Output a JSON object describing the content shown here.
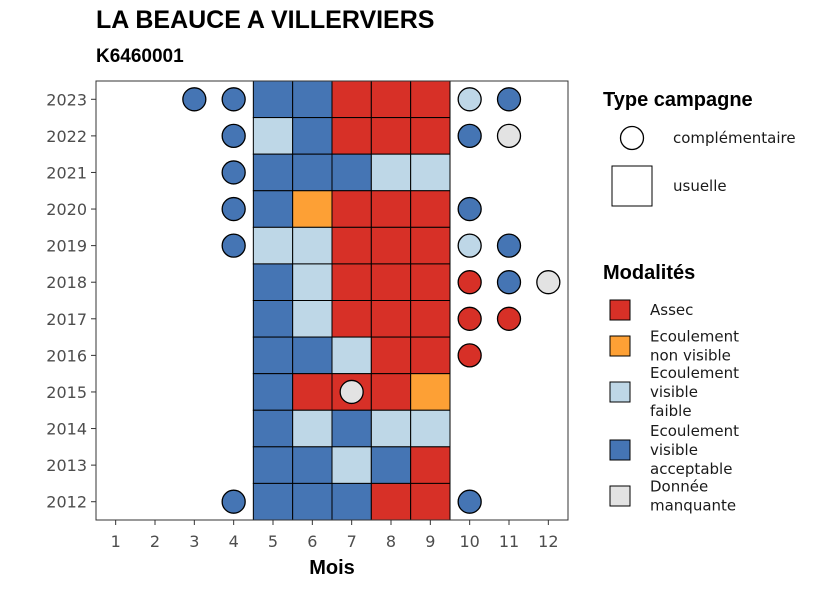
{
  "chart_data": {
    "type": "heatmap",
    "title": "LA BEAUCE A VILLERVIERS",
    "subtitle": "K6460001",
    "xlabel": "Mois",
    "ylabel": "",
    "x_ticks": [
      "1",
      "2",
      "3",
      "4",
      "5",
      "6",
      "7",
      "8",
      "9",
      "10",
      "11",
      "12"
    ],
    "y_ticks": [
      "2023",
      "2022",
      "2021",
      "2020",
      "2019",
      "2018",
      "2017",
      "2016",
      "2015",
      "2014",
      "2013",
      "2012"
    ],
    "grid": false,
    "legend_position": "right",
    "colors": {
      "Assec": "#d73027",
      "Ecoulement non visible": "#fda035",
      "Ecoulement visible faible": "#bed7e7",
      "Ecoulement visible acceptable": "#4575b4",
      "Donnée manquante": "#e3e3e3"
    },
    "legend_campagne": {
      "title": "Type campagne",
      "items": [
        {
          "shape": "circle",
          "label": "complémentaire"
        },
        {
          "shape": "square",
          "label": "usuelle"
        }
      ]
    },
    "legend_modalites": {
      "title": "Modalités",
      "items": [
        {
          "key": "Assec",
          "lines": [
            "Assec"
          ]
        },
        {
          "key": "Ecoulement non visible",
          "lines": [
            "Ecoulement",
            "non visible"
          ]
        },
        {
          "key": "Ecoulement visible faible",
          "lines": [
            "Ecoulement",
            "visible",
            "faible"
          ]
        },
        {
          "key": "Ecoulement visible acceptable",
          "lines": [
            "Ecoulement",
            "visible",
            "acceptable"
          ]
        },
        {
          "key": "Donnée manquante",
          "lines": [
            "Donnée",
            "manquante"
          ]
        }
      ]
    },
    "observations": [
      {
        "year": 2023,
        "month": 3,
        "campagne": "complémentaire",
        "modalite": "Ecoulement visible acceptable"
      },
      {
        "year": 2023,
        "month": 4,
        "campagne": "complémentaire",
        "modalite": "Ecoulement visible acceptable"
      },
      {
        "year": 2023,
        "month": 5,
        "campagne": "usuelle",
        "modalite": "Ecoulement visible acceptable"
      },
      {
        "year": 2023,
        "month": 6,
        "campagne": "usuelle",
        "modalite": "Ecoulement visible acceptable"
      },
      {
        "year": 2023,
        "month": 7,
        "campagne": "usuelle",
        "modalite": "Assec"
      },
      {
        "year": 2023,
        "month": 8,
        "campagne": "usuelle",
        "modalite": "Assec"
      },
      {
        "year": 2023,
        "month": 9,
        "campagne": "usuelle",
        "modalite": "Assec"
      },
      {
        "year": 2023,
        "month": 10,
        "campagne": "complémentaire",
        "modalite": "Ecoulement visible faible"
      },
      {
        "year": 2023,
        "month": 11,
        "campagne": "complémentaire",
        "modalite": "Ecoulement visible acceptable"
      },
      {
        "year": 2022,
        "month": 4,
        "campagne": "complémentaire",
        "modalite": "Ecoulement visible acceptable"
      },
      {
        "year": 2022,
        "month": 5,
        "campagne": "usuelle",
        "modalite": "Ecoulement visible faible"
      },
      {
        "year": 2022,
        "month": 6,
        "campagne": "usuelle",
        "modalite": "Ecoulement visible acceptable"
      },
      {
        "year": 2022,
        "month": 7,
        "campagne": "usuelle",
        "modalite": "Assec"
      },
      {
        "year": 2022,
        "month": 8,
        "campagne": "usuelle",
        "modalite": "Assec"
      },
      {
        "year": 2022,
        "month": 9,
        "campagne": "usuelle",
        "modalite": "Assec"
      },
      {
        "year": 2022,
        "month": 10,
        "campagne": "complémentaire",
        "modalite": "Ecoulement visible acceptable"
      },
      {
        "year": 2022,
        "month": 11,
        "campagne": "complémentaire",
        "modalite": "Donnée manquante"
      },
      {
        "year": 2021,
        "month": 4,
        "campagne": "complémentaire",
        "modalite": "Ecoulement visible acceptable"
      },
      {
        "year": 2021,
        "month": 5,
        "campagne": "usuelle",
        "modalite": "Ecoulement visible acceptable"
      },
      {
        "year": 2021,
        "month": 6,
        "campagne": "usuelle",
        "modalite": "Ecoulement visible acceptable"
      },
      {
        "year": 2021,
        "month": 7,
        "campagne": "usuelle",
        "modalite": "Ecoulement visible acceptable"
      },
      {
        "year": 2021,
        "month": 8,
        "campagne": "usuelle",
        "modalite": "Ecoulement visible faible"
      },
      {
        "year": 2021,
        "month": 9,
        "campagne": "usuelle",
        "modalite": "Ecoulement visible faible"
      },
      {
        "year": 2020,
        "month": 4,
        "campagne": "complémentaire",
        "modalite": "Ecoulement visible acceptable"
      },
      {
        "year": 2020,
        "month": 5,
        "campagne": "usuelle",
        "modalite": "Ecoulement visible acceptable"
      },
      {
        "year": 2020,
        "month": 6,
        "campagne": "usuelle",
        "modalite": "Ecoulement non visible"
      },
      {
        "year": 2020,
        "month": 7,
        "campagne": "usuelle",
        "modalite": "Assec"
      },
      {
        "year": 2020,
        "month": 8,
        "campagne": "usuelle",
        "modalite": "Assec"
      },
      {
        "year": 2020,
        "month": 9,
        "campagne": "usuelle",
        "modalite": "Assec"
      },
      {
        "year": 2020,
        "month": 10,
        "campagne": "complémentaire",
        "modalite": "Ecoulement visible acceptable"
      },
      {
        "year": 2019,
        "month": 4,
        "campagne": "complémentaire",
        "modalite": "Ecoulement visible acceptable"
      },
      {
        "year": 2019,
        "month": 5,
        "campagne": "usuelle",
        "modalite": "Ecoulement visible faible"
      },
      {
        "year": 2019,
        "month": 6,
        "campagne": "usuelle",
        "modalite": "Ecoulement visible faible"
      },
      {
        "year": 2019,
        "month": 7,
        "campagne": "usuelle",
        "modalite": "Assec"
      },
      {
        "year": 2019,
        "month": 8,
        "campagne": "usuelle",
        "modalite": "Assec"
      },
      {
        "year": 2019,
        "month": 9,
        "campagne": "usuelle",
        "modalite": "Assec"
      },
      {
        "year": 2019,
        "month": 10,
        "campagne": "complémentaire",
        "modalite": "Ecoulement visible faible"
      },
      {
        "year": 2019,
        "month": 11,
        "campagne": "complémentaire",
        "modalite": "Ecoulement visible acceptable"
      },
      {
        "year": 2018,
        "month": 5,
        "campagne": "usuelle",
        "modalite": "Ecoulement visible acceptable"
      },
      {
        "year": 2018,
        "month": 6,
        "campagne": "usuelle",
        "modalite": "Ecoulement visible faible"
      },
      {
        "year": 2018,
        "month": 7,
        "campagne": "usuelle",
        "modalite": "Assec"
      },
      {
        "year": 2018,
        "month": 8,
        "campagne": "usuelle",
        "modalite": "Assec"
      },
      {
        "year": 2018,
        "month": 9,
        "campagne": "usuelle",
        "modalite": "Assec"
      },
      {
        "year": 2018,
        "month": 10,
        "campagne": "complémentaire",
        "modalite": "Assec"
      },
      {
        "year": 2018,
        "month": 11,
        "campagne": "complémentaire",
        "modalite": "Ecoulement visible acceptable"
      },
      {
        "year": 2018,
        "month": 12,
        "campagne": "complémentaire",
        "modalite": "Donnée manquante"
      },
      {
        "year": 2017,
        "month": 5,
        "campagne": "usuelle",
        "modalite": "Ecoulement visible acceptable"
      },
      {
        "year": 2017,
        "month": 6,
        "campagne": "usuelle",
        "modalite": "Ecoulement visible faible"
      },
      {
        "year": 2017,
        "month": 7,
        "campagne": "usuelle",
        "modalite": "Assec"
      },
      {
        "year": 2017,
        "month": 8,
        "campagne": "usuelle",
        "modalite": "Assec"
      },
      {
        "year": 2017,
        "month": 9,
        "campagne": "usuelle",
        "modalite": "Assec"
      },
      {
        "year": 2017,
        "month": 10,
        "campagne": "complémentaire",
        "modalite": "Assec"
      },
      {
        "year": 2017,
        "month": 11,
        "campagne": "complémentaire",
        "modalite": "Assec"
      },
      {
        "year": 2016,
        "month": 5,
        "campagne": "usuelle",
        "modalite": "Ecoulement visible acceptable"
      },
      {
        "year": 2016,
        "month": 6,
        "campagne": "usuelle",
        "modalite": "Ecoulement visible acceptable"
      },
      {
        "year": 2016,
        "month": 7,
        "campagne": "usuelle",
        "modalite": "Ecoulement visible faible"
      },
      {
        "year": 2016,
        "month": 8,
        "campagne": "usuelle",
        "modalite": "Assec"
      },
      {
        "year": 2016,
        "month": 9,
        "campagne": "usuelle",
        "modalite": "Assec"
      },
      {
        "year": 2016,
        "month": 10,
        "campagne": "complémentaire",
        "modalite": "Assec"
      },
      {
        "year": 2015,
        "month": 5,
        "campagne": "usuelle",
        "modalite": "Ecoulement visible acceptable"
      },
      {
        "year": 2015,
        "month": 6,
        "campagne": "usuelle",
        "modalite": "Assec"
      },
      {
        "year": 2015,
        "month": 7,
        "campagne": "usuelle",
        "modalite": "Assec"
      },
      {
        "year": 2015,
        "month": 7,
        "campagne": "complémentaire",
        "modalite": "Donnée manquante"
      },
      {
        "year": 2015,
        "month": 8,
        "campagne": "usuelle",
        "modalite": "Assec"
      },
      {
        "year": 2015,
        "month": 9,
        "campagne": "usuelle",
        "modalite": "Ecoulement non visible"
      },
      {
        "year": 2014,
        "month": 5,
        "campagne": "usuelle",
        "modalite": "Ecoulement visible acceptable"
      },
      {
        "year": 2014,
        "month": 6,
        "campagne": "usuelle",
        "modalite": "Ecoulement visible faible"
      },
      {
        "year": 2014,
        "month": 7,
        "campagne": "usuelle",
        "modalite": "Ecoulement visible acceptable"
      },
      {
        "year": 2014,
        "month": 8,
        "campagne": "usuelle",
        "modalite": "Ecoulement visible faible"
      },
      {
        "year": 2014,
        "month": 9,
        "campagne": "usuelle",
        "modalite": "Ecoulement visible faible"
      },
      {
        "year": 2013,
        "month": 5,
        "campagne": "usuelle",
        "modalite": "Ecoulement visible acceptable"
      },
      {
        "year": 2013,
        "month": 6,
        "campagne": "usuelle",
        "modalite": "Ecoulement visible acceptable"
      },
      {
        "year": 2013,
        "month": 7,
        "campagne": "usuelle",
        "modalite": "Ecoulement visible faible"
      },
      {
        "year": 2013,
        "month": 8,
        "campagne": "usuelle",
        "modalite": "Ecoulement visible acceptable"
      },
      {
        "year": 2013,
        "month": 9,
        "campagne": "usuelle",
        "modalite": "Assec"
      },
      {
        "year": 2012,
        "month": 4,
        "campagne": "complémentaire",
        "modalite": "Ecoulement visible acceptable"
      },
      {
        "year": 2012,
        "month": 5,
        "campagne": "usuelle",
        "modalite": "Ecoulement visible acceptable"
      },
      {
        "year": 2012,
        "month": 6,
        "campagne": "usuelle",
        "modalite": "Ecoulement visible acceptable"
      },
      {
        "year": 2012,
        "month": 7,
        "campagne": "usuelle",
        "modalite": "Ecoulement visible acceptable"
      },
      {
        "year": 2012,
        "month": 8,
        "campagne": "usuelle",
        "modalite": "Assec"
      },
      {
        "year": 2012,
        "month": 9,
        "campagne": "usuelle",
        "modalite": "Assec"
      },
      {
        "year": 2012,
        "month": 10,
        "campagne": "complémentaire",
        "modalite": "Ecoulement visible acceptable"
      }
    ]
  }
}
